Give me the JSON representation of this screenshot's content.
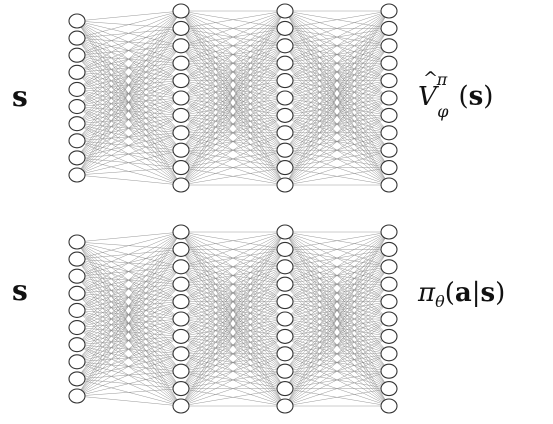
{
  "diagram": {
    "networks": [
      {
        "id": "value-network",
        "input_label": "s",
        "output_label": "V̂_φ^π(s)",
        "layer_sizes": [
          10,
          11,
          11,
          11
        ]
      },
      {
        "id": "policy-network",
        "input_label": "s",
        "output_label": "π_θ(a|s)",
        "layer_sizes": [
          10,
          11,
          11,
          11
        ]
      }
    ],
    "colors": {
      "edge": "#8c8c8c",
      "node_stroke": "#333333",
      "node_fill": "#ffffff",
      "text": "#111111"
    }
  }
}
